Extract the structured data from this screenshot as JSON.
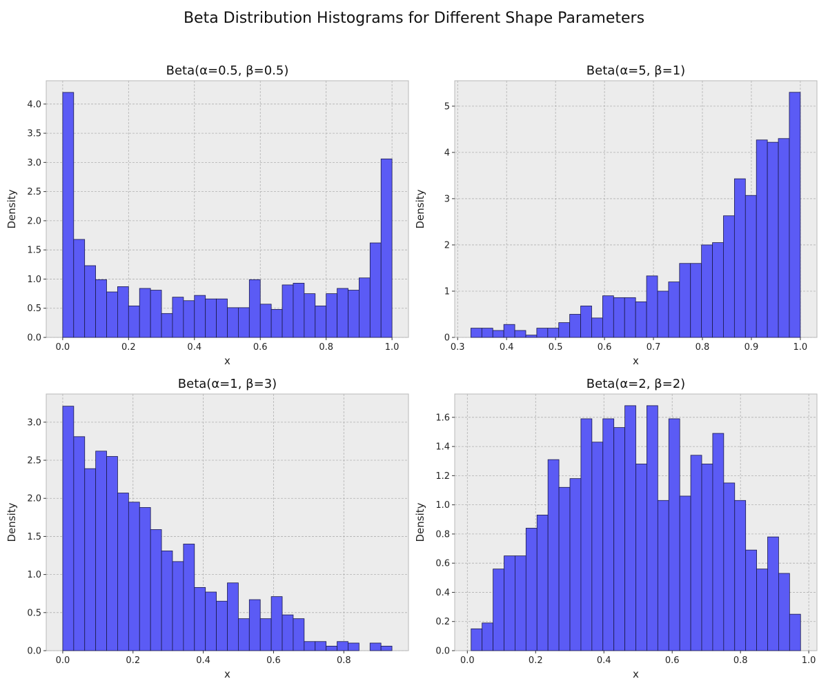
{
  "figure_title": "Beta Distribution Histograms for Different Shape Parameters",
  "bar_color": "#5b5bf5",
  "chart_data": [
    {
      "type": "bar",
      "title": "Beta(α=0.5, β=0.5)",
      "xlabel": "x",
      "ylabel": "Density",
      "xlim": [
        -0.05,
        1.05
      ],
      "ylim": [
        0,
        4.4
      ],
      "xticks": [
        0.0,
        0.2,
        0.4,
        0.6,
        0.8,
        1.0
      ],
      "xtick_labels": [
        "0.0",
        "0.2",
        "0.4",
        "0.6",
        "0.8",
        "1.0"
      ],
      "yticks": [
        0.0,
        0.5,
        1.0,
        1.5,
        2.0,
        2.5,
        3.0,
        3.5,
        4.0
      ],
      "ytick_labels": [
        "0.0",
        "0.5",
        "1.0",
        "1.5",
        "2.0",
        "2.5",
        "3.0",
        "3.5",
        "4.0"
      ],
      "grid": true,
      "bin_start": 0.0,
      "bin_end": 1.0,
      "values": [
        4.2,
        1.68,
        1.23,
        0.99,
        0.78,
        0.87,
        0.54,
        0.84,
        0.81,
        0.41,
        0.69,
        0.63,
        0.72,
        0.66,
        0.66,
        0.51,
        0.51,
        0.99,
        0.57,
        0.48,
        0.9,
        0.93,
        0.75,
        0.54,
        0.75,
        0.84,
        0.81,
        1.02,
        1.62,
        3.06
      ]
    },
    {
      "type": "bar",
      "title": "Beta(α=5, β=1)",
      "xlabel": "x",
      "ylabel": "Density",
      "xlim": [
        0.294,
        1.034
      ],
      "ylim": [
        0,
        5.55
      ],
      "xticks": [
        0.3,
        0.4,
        0.5,
        0.6,
        0.7,
        0.8,
        0.9,
        1.0
      ],
      "xtick_labels": [
        "0.3",
        "0.4",
        "0.5",
        "0.6",
        "0.7",
        "0.8",
        "0.9",
        "1.0"
      ],
      "yticks": [
        0,
        1,
        2,
        3,
        4,
        5
      ],
      "ytick_labels": [
        "0",
        "1",
        "2",
        "3",
        "4",
        "5"
      ],
      "grid": true,
      "bin_start": 0.327,
      "bin_end": 1.0,
      "values": [
        0.2,
        0.2,
        0.15,
        0.28,
        0.15,
        0.05,
        0.2,
        0.2,
        0.32,
        0.5,
        0.68,
        0.42,
        0.9,
        0.86,
        0.86,
        0.77,
        1.33,
        1.0,
        1.2,
        1.6,
        1.6,
        2.0,
        2.05,
        2.63,
        3.43,
        3.07,
        4.27,
        4.22,
        4.3,
        5.3
      ]
    },
    {
      "type": "bar",
      "title": "Beta(α=1, β=3)",
      "xlabel": "x",
      "ylabel": "Density",
      "xlim": [
        -0.047,
        0.984
      ],
      "ylim": [
        0,
        3.37
      ],
      "xticks": [
        0.0,
        0.2,
        0.4,
        0.6,
        0.8
      ],
      "xtick_labels": [
        "0.0",
        "0.2",
        "0.4",
        "0.6",
        "0.8"
      ],
      "yticks": [
        0.0,
        0.5,
        1.0,
        1.5,
        2.0,
        2.5,
        3.0
      ],
      "ytick_labels": [
        "0.0",
        "0.5",
        "1.0",
        "1.5",
        "2.0",
        "2.5",
        "3.0"
      ],
      "grid": true,
      "bin_start": 0.0,
      "bin_end": 0.937,
      "values": [
        3.21,
        2.81,
        2.39,
        2.62,
        2.55,
        2.07,
        1.95,
        1.88,
        1.59,
        1.31,
        1.17,
        1.4,
        0.83,
        0.77,
        0.65,
        0.89,
        0.42,
        0.67,
        0.42,
        0.71,
        0.47,
        0.42,
        0.12,
        0.12,
        0.06,
        0.12,
        0.1,
        0.0,
        0.1,
        0.06
      ]
    },
    {
      "type": "bar",
      "title": "Beta(α=2, β=2)",
      "xlabel": "x",
      "ylabel": "Density",
      "xlim": [
        -0.037,
        1.024
      ],
      "ylim": [
        0,
        1.76
      ],
      "xticks": [
        0.0,
        0.2,
        0.4,
        0.6,
        0.8,
        1.0
      ],
      "xtick_labels": [
        "0.0",
        "0.2",
        "0.4",
        "0.6",
        "0.8",
        "1.0"
      ],
      "yticks": [
        0.0,
        0.2,
        0.4,
        0.6,
        0.8,
        1.0,
        1.2,
        1.4,
        1.6
      ],
      "ytick_labels": [
        "0.0",
        "0.2",
        "0.4",
        "0.6",
        "0.8",
        "1.0",
        "1.2",
        "1.4",
        "1.6"
      ],
      "grid": true,
      "bin_start": 0.011,
      "bin_end": 0.976,
      "values": [
        0.15,
        0.19,
        0.56,
        0.65,
        0.65,
        0.84,
        0.93,
        1.31,
        1.12,
        1.18,
        1.59,
        1.43,
        1.59,
        1.53,
        1.68,
        1.28,
        1.68,
        1.03,
        1.59,
        1.06,
        1.34,
        1.28,
        1.49,
        1.15,
        1.03,
        0.69,
        0.56,
        0.78,
        0.53,
        0.25
      ]
    }
  ]
}
